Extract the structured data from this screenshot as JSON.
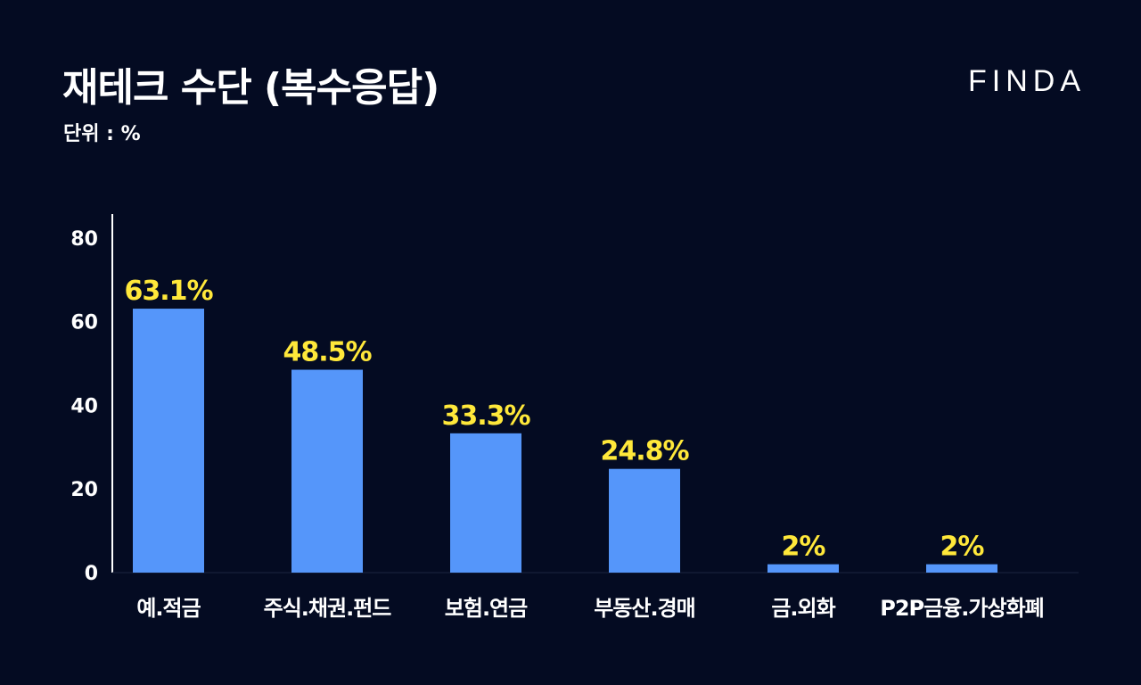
{
  "header": {
    "title": "재테크 수단 (복수응답)",
    "unit": "단위 : %",
    "brand": "FINDA"
  },
  "colors": {
    "background": "#040b22",
    "bar": "#5596fa",
    "value_label": "#ffe83a",
    "text": "#ffffff"
  },
  "chart_data": {
    "type": "bar",
    "title": "재테크 수단 (복수응답)",
    "categories": [
      "예.적금",
      "주식.채권.펀드",
      "보험.연금",
      "부동산.경매",
      "금.외화",
      "P2P금융.가상화폐"
    ],
    "values": [
      63.1,
      48.5,
      33.3,
      24.8,
      2,
      2
    ],
    "value_labels": [
      "63.1%",
      "48.5%",
      "33.3%",
      "24.8%",
      "2%",
      "2%"
    ],
    "yticks": [
      0,
      20,
      40,
      60,
      80
    ],
    "ylim": [
      0,
      85
    ],
    "xlabel": "",
    "ylabel": "",
    "grid": false,
    "legend": "none"
  }
}
